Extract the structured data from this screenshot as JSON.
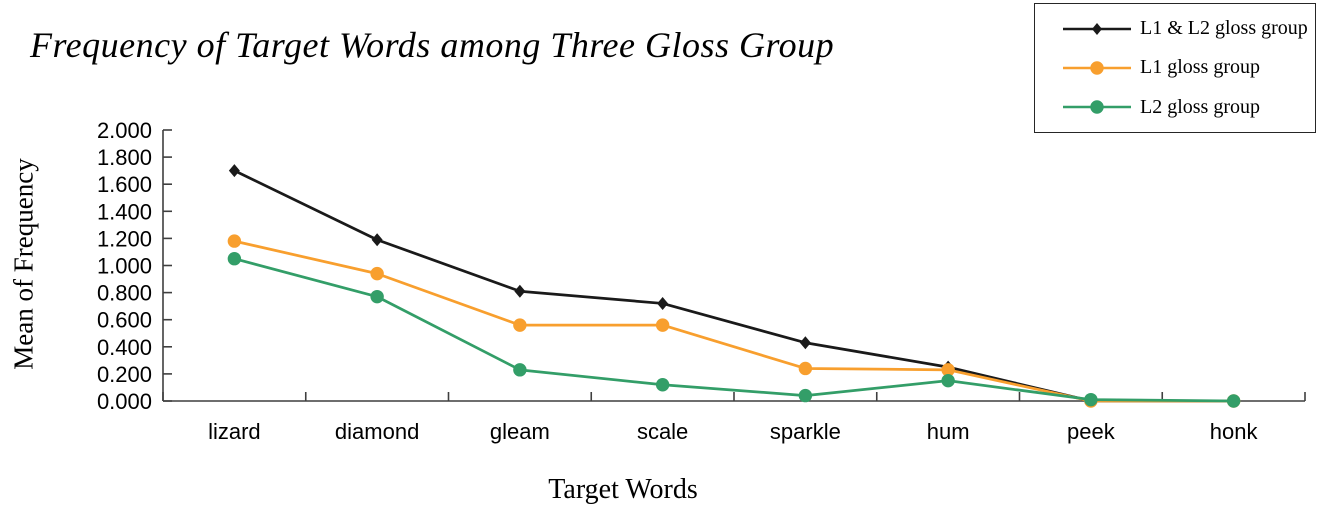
{
  "title": "Frequency of Target Words among Three Gloss Group",
  "x_axis_label": "Target Words",
  "y_axis_label": "Mean of Frequency",
  "colors": {
    "series_1": "#1a1a1a",
    "series_2": "#f89f2e",
    "series_3": "#339e68",
    "axis": "#3f3f3f",
    "text": "#000000",
    "legend_border": "#262626"
  },
  "legend": {
    "position": "top-right",
    "entries": [
      {
        "label": "L1 & L2 gloss group",
        "color": "#1a1a1a",
        "marker": "diamond"
      },
      {
        "label": "L1 gloss group",
        "color": "#f89f2e",
        "marker": "circle"
      },
      {
        "label": "L2 gloss group",
        "color": "#339e68",
        "marker": "circle"
      }
    ]
  },
  "chart_data": {
    "type": "line",
    "title": "Frequency of Target Words among Three Gloss Group",
    "xlabel": "Target Words",
    "ylabel": "Mean of Frequency",
    "categories": [
      "lizard",
      "diamond",
      "gleam",
      "scale",
      "sparkle",
      "hum",
      "peek",
      "honk"
    ],
    "series": [
      {
        "name": "L1 & L2 gloss group",
        "color": "#1a1a1a",
        "marker": "diamond",
        "values": [
          1.7,
          1.19,
          0.81,
          0.72,
          0.43,
          0.25,
          0.0,
          0.0
        ]
      },
      {
        "name": "L1 gloss group",
        "color": "#f89f2e",
        "marker": "circle",
        "values": [
          1.18,
          0.94,
          0.56,
          0.56,
          0.24,
          0.23,
          0.0,
          0.0
        ]
      },
      {
        "name": "L2 gloss group",
        "color": "#339e68",
        "marker": "circle",
        "values": [
          1.05,
          0.77,
          0.23,
          0.12,
          0.04,
          0.15,
          0.01,
          0.0
        ]
      }
    ],
    "ylim": [
      0,
      2
    ],
    "yticks": [
      "0.000",
      "0.200",
      "0.400",
      "0.600",
      "0.800",
      "1.000",
      "1.200",
      "1.400",
      "1.600",
      "1.800",
      "2.000"
    ],
    "grid": false,
    "legend_position": "top-right"
  }
}
